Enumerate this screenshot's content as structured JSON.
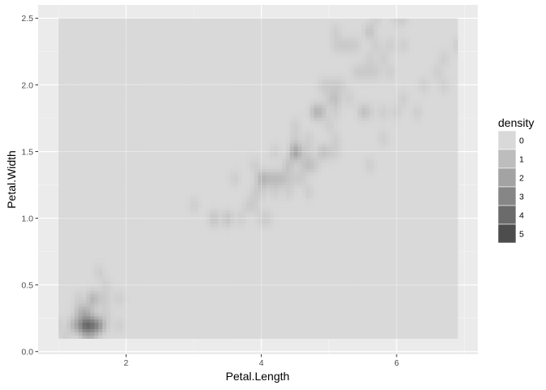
{
  "chart_data": {
    "type": "heatmap",
    "xlabel": "Petal.Length",
    "ylabel": "Petal.Width",
    "xlim": [
      0.7,
      7.2
    ],
    "ylim": [
      -0.02,
      2.6
    ],
    "x_ticks": [
      2,
      4,
      6
    ],
    "x_tick_labels": [
      "2",
      "4",
      "6"
    ],
    "y_ticks": [
      0.0,
      0.5,
      1.0,
      1.5,
      2.0,
      2.5
    ],
    "y_tick_labels": [
      "0.0",
      "0.5",
      "1.0",
      "1.5",
      "2.0",
      "2.5"
    ],
    "grid": true,
    "legend": {
      "title": "density",
      "position": "right",
      "labels": [
        "0",
        "1",
        "2",
        "3",
        "4",
        "5"
      ],
      "colors": [
        "#d9d9d9",
        "#bdbdbd",
        "#a3a3a3",
        "#868686",
        "#6b6b6b",
        "#4d4d4d"
      ]
    },
    "density_extent": {
      "x": [
        1.0,
        6.9
      ],
      "y": [
        0.1,
        2.5
      ]
    },
    "density_max": 5.6,
    "points": [
      [
        1.4,
        0.2
      ],
      [
        1.4,
        0.2
      ],
      [
        1.3,
        0.2
      ],
      [
        1.5,
        0.2
      ],
      [
        1.4,
        0.2
      ],
      [
        1.7,
        0.4
      ],
      [
        1.4,
        0.3
      ],
      [
        1.5,
        0.2
      ],
      [
        1.4,
        0.2
      ],
      [
        1.5,
        0.1
      ],
      [
        1.5,
        0.2
      ],
      [
        1.6,
        0.2
      ],
      [
        1.4,
        0.1
      ],
      [
        1.1,
        0.1
      ],
      [
        1.2,
        0.2
      ],
      [
        1.5,
        0.4
      ],
      [
        1.3,
        0.4
      ],
      [
        1.4,
        0.3
      ],
      [
        1.7,
        0.3
      ],
      [
        1.5,
        0.3
      ],
      [
        1.7,
        0.2
      ],
      [
        1.5,
        0.4
      ],
      [
        1.0,
        0.2
      ],
      [
        1.7,
        0.5
      ],
      [
        1.9,
        0.2
      ],
      [
        1.6,
        0.2
      ],
      [
        1.6,
        0.4
      ],
      [
        1.5,
        0.2
      ],
      [
        1.4,
        0.2
      ],
      [
        1.6,
        0.2
      ],
      [
        1.6,
        0.2
      ],
      [
        1.5,
        0.4
      ],
      [
        1.5,
        0.1
      ],
      [
        1.4,
        0.2
      ],
      [
        1.5,
        0.2
      ],
      [
        1.2,
        0.2
      ],
      [
        1.3,
        0.2
      ],
      [
        1.4,
        0.1
      ],
      [
        1.3,
        0.2
      ],
      [
        1.5,
        0.2
      ],
      [
        1.3,
        0.3
      ],
      [
        1.3,
        0.3
      ],
      [
        1.3,
        0.2
      ],
      [
        1.6,
        0.6
      ],
      [
        1.9,
        0.4
      ],
      [
        1.4,
        0.3
      ],
      [
        1.6,
        0.2
      ],
      [
        1.4,
        0.2
      ],
      [
        1.5,
        0.2
      ],
      [
        1.4,
        0.2
      ],
      [
        4.7,
        1.4
      ],
      [
        4.5,
        1.5
      ],
      [
        4.9,
        1.5
      ],
      [
        4.0,
        1.3
      ],
      [
        4.6,
        1.5
      ],
      [
        4.5,
        1.3
      ],
      [
        4.7,
        1.6
      ],
      [
        3.3,
        1.0
      ],
      [
        4.6,
        1.3
      ],
      [
        3.9,
        1.4
      ],
      [
        3.5,
        1.0
      ],
      [
        4.2,
        1.5
      ],
      [
        4.0,
        1.0
      ],
      [
        4.7,
        1.4
      ],
      [
        3.6,
        1.3
      ],
      [
        4.4,
        1.4
      ],
      [
        4.5,
        1.5
      ],
      [
        4.1,
        1.0
      ],
      [
        4.5,
        1.5
      ],
      [
        3.9,
        1.1
      ],
      [
        4.8,
        1.8
      ],
      [
        4.0,
        1.3
      ],
      [
        4.9,
        1.5
      ],
      [
        4.7,
        1.2
      ],
      [
        4.3,
        1.3
      ],
      [
        4.4,
        1.4
      ],
      [
        4.8,
        1.4
      ],
      [
        5.0,
        1.7
      ],
      [
        4.5,
        1.5
      ],
      [
        3.5,
        1.0
      ],
      [
        3.8,
        1.1
      ],
      [
        3.7,
        1.0
      ],
      [
        3.9,
        1.2
      ],
      [
        5.1,
        1.6
      ],
      [
        4.5,
        1.5
      ],
      [
        4.5,
        1.6
      ],
      [
        4.7,
        1.5
      ],
      [
        4.4,
        1.3
      ],
      [
        4.1,
        1.3
      ],
      [
        4.0,
        1.3
      ],
      [
        4.4,
        1.2
      ],
      [
        4.6,
        1.4
      ],
      [
        4.0,
        1.2
      ],
      [
        3.3,
        1.0
      ],
      [
        4.2,
        1.3
      ],
      [
        4.2,
        1.2
      ],
      [
        4.2,
        1.3
      ],
      [
        4.3,
        1.3
      ],
      [
        3.0,
        1.1
      ],
      [
        4.1,
        1.3
      ],
      [
        6.0,
        2.5
      ],
      [
        5.1,
        1.9
      ],
      [
        5.9,
        2.1
      ],
      [
        5.6,
        1.8
      ],
      [
        5.8,
        2.2
      ],
      [
        6.6,
        2.1
      ],
      [
        4.5,
        1.7
      ],
      [
        6.3,
        1.8
      ],
      [
        5.8,
        1.8
      ],
      [
        6.1,
        2.5
      ],
      [
        5.1,
        2.0
      ],
      [
        5.3,
        1.9
      ],
      [
        5.5,
        2.1
      ],
      [
        5.0,
        2.0
      ],
      [
        5.1,
        2.4
      ],
      [
        5.3,
        2.3
      ],
      [
        5.5,
        1.8
      ],
      [
        6.7,
        2.2
      ],
      [
        6.9,
        2.3
      ],
      [
        5.0,
        1.5
      ],
      [
        5.7,
        2.3
      ],
      [
        4.9,
        2.0
      ],
      [
        6.7,
        2.0
      ],
      [
        4.9,
        1.8
      ],
      [
        5.7,
        2.1
      ],
      [
        6.0,
        1.8
      ],
      [
        4.8,
        1.8
      ],
      [
        4.9,
        1.8
      ],
      [
        5.6,
        2.1
      ],
      [
        5.8,
        1.6
      ],
      [
        6.1,
        1.9
      ],
      [
        6.4,
        2.0
      ],
      [
        5.6,
        2.2
      ],
      [
        5.1,
        1.5
      ],
      [
        5.6,
        1.4
      ],
      [
        6.1,
        2.3
      ],
      [
        5.6,
        2.4
      ],
      [
        5.5,
        1.8
      ],
      [
        4.8,
        1.8
      ],
      [
        5.4,
        2.1
      ],
      [
        5.6,
        2.4
      ],
      [
        5.1,
        2.3
      ],
      [
        5.1,
        1.9
      ],
      [
        5.9,
        2.3
      ],
      [
        5.7,
        2.5
      ],
      [
        5.2,
        2.3
      ],
      [
        5.0,
        1.9
      ],
      [
        5.2,
        2.0
      ],
      [
        5.4,
        2.3
      ],
      [
        5.1,
        1.8
      ]
    ]
  }
}
